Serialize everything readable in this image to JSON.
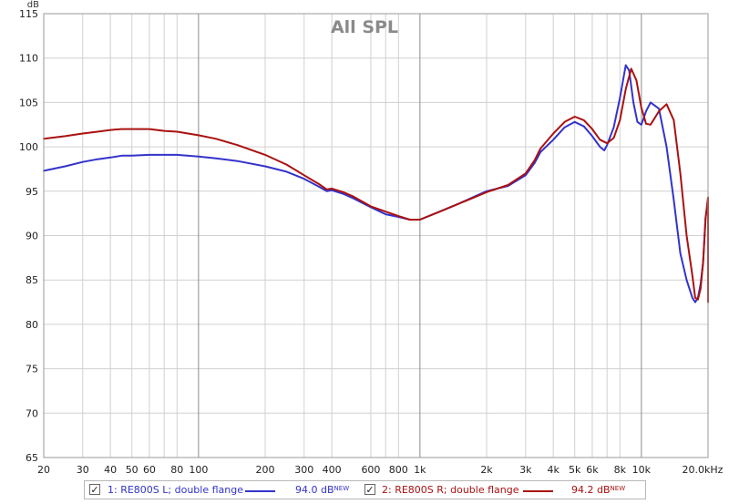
{
  "chart_data": {
    "type": "line",
    "title": "All SPL",
    "ylabel": "dB",
    "x_scale": "log",
    "xlim": [
      20,
      20000
    ],
    "ylim": [
      65,
      115
    ],
    "grid": true,
    "x_ticks": [
      {
        "v": 20,
        "label": "20"
      },
      {
        "v": 30,
        "label": "30"
      },
      {
        "v": 40,
        "label": "40"
      },
      {
        "v": 50,
        "label": "50"
      },
      {
        "v": 60,
        "label": "60"
      },
      {
        "v": 80,
        "label": "80"
      },
      {
        "v": 100,
        "label": "100"
      },
      {
        "v": 200,
        "label": "200"
      },
      {
        "v": 300,
        "label": "300"
      },
      {
        "v": 400,
        "label": "400"
      },
      {
        "v": 600,
        "label": "600"
      },
      {
        "v": 800,
        "label": "800"
      },
      {
        "v": 1000,
        "label": "1k"
      },
      {
        "v": 2000,
        "label": "2k"
      },
      {
        "v": 3000,
        "label": "3k"
      },
      {
        "v": 4000,
        "label": "4k"
      },
      {
        "v": 5000,
        "label": "5k"
      },
      {
        "v": 6000,
        "label": "6k"
      },
      {
        "v": 8000,
        "label": "8k"
      },
      {
        "v": 10000,
        "label": "10k"
      },
      {
        "v": 20000,
        "label": "20.0kHz"
      }
    ],
    "x_minor": [
      70,
      700,
      7000
    ],
    "y_ticks": [
      65,
      70,
      75,
      80,
      85,
      90,
      95,
      100,
      105,
      110,
      115
    ],
    "series": [
      {
        "name": "1: RE800S L; double flange",
        "color": "#3333cc",
        "level": "94.0 dB",
        "badge": "NEW",
        "x": [
          20,
          25,
          30,
          35,
          40,
          45,
          50,
          60,
          70,
          80,
          100,
          120,
          150,
          200,
          250,
          300,
          350,
          380,
          400,
          450,
          500,
          600,
          700,
          800,
          900,
          1000,
          1200,
          1500,
          1800,
          2000,
          2500,
          3000,
          3300,
          3500,
          4000,
          4500,
          5000,
          5500,
          6000,
          6500,
          6800,
          7000,
          7500,
          8000,
          8500,
          8800,
          9200,
          9600,
          10000,
          10500,
          11000,
          12000,
          13000,
          14000,
          15000,
          16000,
          17000,
          17500,
          18000,
          18500,
          19000,
          19500,
          20000
        ],
        "y": [
          97.3,
          97.8,
          98.3,
          98.6,
          98.8,
          99.0,
          99.0,
          99.1,
          99.1,
          99.1,
          98.9,
          98.7,
          98.4,
          97.8,
          97.2,
          96.4,
          95.5,
          95.0,
          95.1,
          94.7,
          94.2,
          93.2,
          92.4,
          92.1,
          91.8,
          91.8,
          92.6,
          93.6,
          94.5,
          95.0,
          95.6,
          96.8,
          98.2,
          99.4,
          100.8,
          102.2,
          102.8,
          102.3,
          101.2,
          100.0,
          99.6,
          100.2,
          102.2,
          105.5,
          109.2,
          108.6,
          105.0,
          102.8,
          102.5,
          104.0,
          105.0,
          104.3,
          100.0,
          94.0,
          88.0,
          85.0,
          83.0,
          82.5,
          83.0,
          84.5,
          87.0,
          92.0,
          93.8
        ]
      },
      {
        "name": "2: RE800S R; double flange",
        "color": "#aa1111",
        "level": "94.2 dB",
        "badge": "NEW",
        "x": [
          20,
          25,
          30,
          35,
          40,
          45,
          50,
          60,
          70,
          80,
          100,
          120,
          150,
          200,
          250,
          300,
          350,
          380,
          400,
          450,
          500,
          600,
          700,
          800,
          900,
          1000,
          1200,
          1500,
          1800,
          2000,
          2500,
          3000,
          3300,
          3500,
          4000,
          4500,
          5000,
          5500,
          6000,
          6500,
          7000,
          7500,
          8000,
          8500,
          9000,
          9500,
          10000,
          10500,
          11000,
          12000,
          13000,
          14000,
          15000,
          16000,
          17000,
          17500,
          18000,
          18500,
          19000,
          19500,
          20000
        ],
        "y": [
          100.9,
          101.2,
          101.5,
          101.7,
          101.9,
          102.0,
          102.0,
          102.0,
          101.8,
          101.7,
          101.3,
          100.9,
          100.2,
          99.1,
          98.0,
          96.8,
          95.8,
          95.2,
          95.3,
          94.9,
          94.4,
          93.3,
          92.7,
          92.2,
          91.8,
          91.8,
          92.6,
          93.6,
          94.4,
          94.9,
          95.7,
          97.0,
          98.5,
          99.8,
          101.5,
          102.8,
          103.4,
          103.0,
          102.0,
          100.8,
          100.4,
          101.0,
          103.0,
          106.5,
          108.8,
          107.5,
          104.4,
          102.6,
          102.5,
          104.0,
          104.8,
          103.0,
          97.0,
          90.0,
          85.5,
          83.0,
          82.8,
          84.0,
          87.0,
          92.0,
          94.3
        ]
      }
    ],
    "tail": [
      {
        "series": 0,
        "x": [
          20000,
          20200,
          20400,
          20700,
          20900,
          21100,
          21300
        ],
        "y": [
          93.8,
          92.0,
          88.0,
          86.0,
          85.8,
          86.0,
          84.3
        ]
      },
      {
        "series": 1,
        "x": [
          20000,
          20200,
          20400,
          20700,
          20900,
          21100,
          21300
        ],
        "y": [
          94.3,
          93.0,
          89.0,
          86.5,
          86.0,
          86.8,
          82.5
        ]
      }
    ]
  }
}
